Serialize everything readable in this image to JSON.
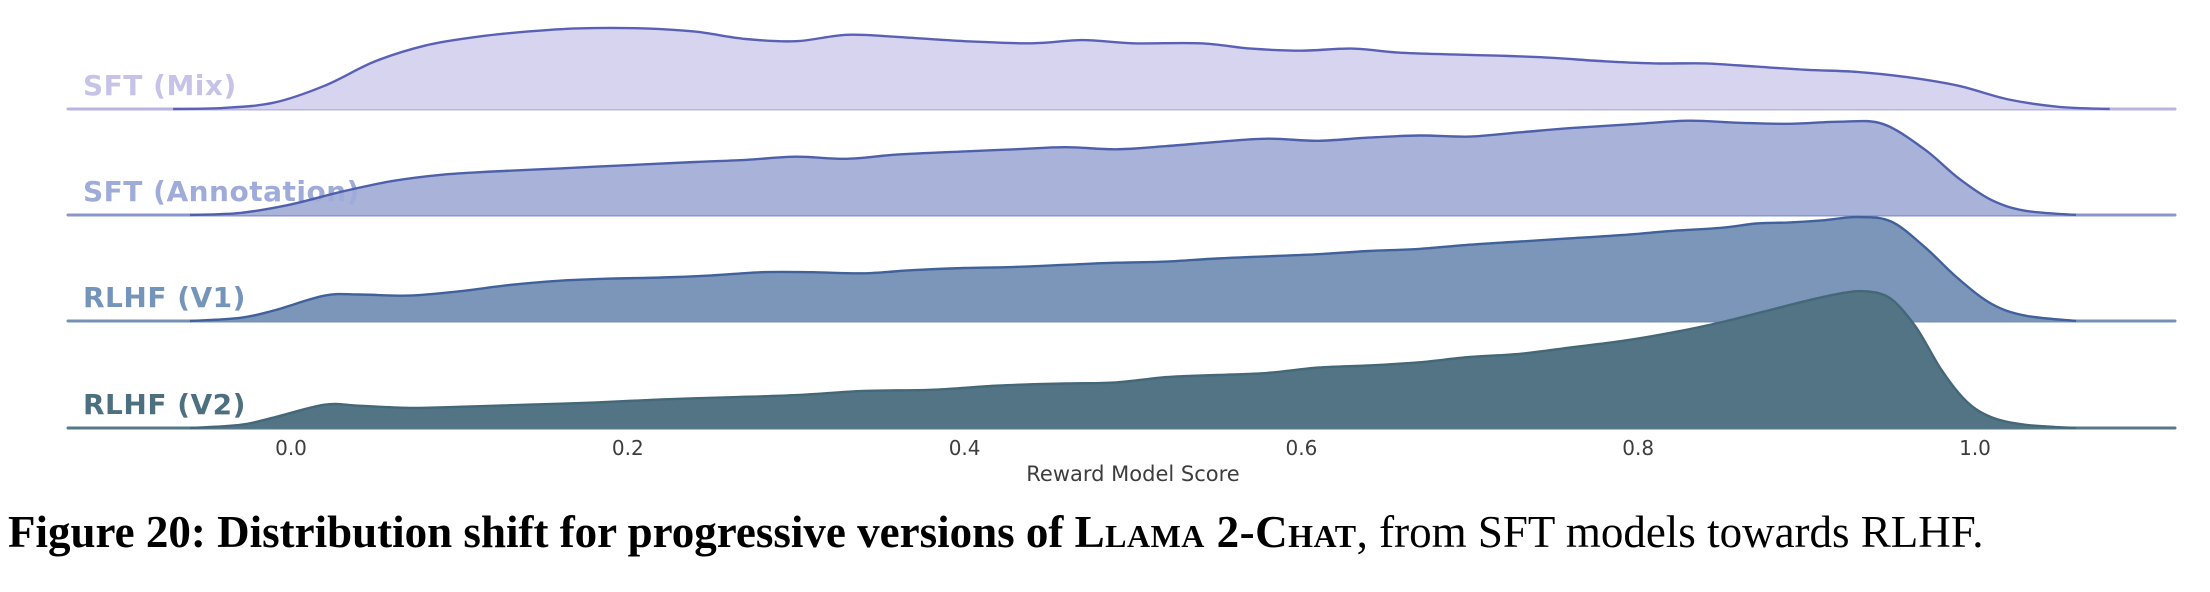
{
  "figure_caption": {
    "bold": "Figure 20: Distribution shift for progressive versions of ",
    "smallcaps": "Llama 2-Chat",
    "regular": ", from SFT models towards RLHF."
  },
  "chart_data": {
    "type": "area",
    "variant": "ridgeline",
    "title": "",
    "xlabel": "Reward Model Score",
    "ylabel": "",
    "x_ticks": [
      0.0,
      0.2,
      0.4,
      0.6,
      0.8,
      1.0
    ],
    "x_tick_labels": [
      "0.0",
      "0.2",
      "0.4",
      "0.6",
      "0.8",
      "1.0"
    ],
    "xlim": [
      -0.13,
      1.12
    ],
    "grid": false,
    "legend_position": "row-labels-left",
    "background_color": "#ffffff",
    "series": [
      {
        "name": "SFT (Mix)",
        "fill_color": "#d7d4ef",
        "stroke_color": "#5a61b5",
        "baseline_color": "#b9b4e0",
        "label_color": "#c7c3e8",
        "points": [
          [
            -0.07,
            0
          ],
          [
            -0.04,
            0.01
          ],
          [
            -0.01,
            0.06
          ],
          [
            0.02,
            0.22
          ],
          [
            0.05,
            0.45
          ],
          [
            0.08,
            0.6
          ],
          [
            0.11,
            0.68
          ],
          [
            0.14,
            0.73
          ],
          [
            0.17,
            0.76
          ],
          [
            0.21,
            0.76
          ],
          [
            0.24,
            0.73
          ],
          [
            0.27,
            0.66
          ],
          [
            0.3,
            0.64
          ],
          [
            0.33,
            0.7
          ],
          [
            0.36,
            0.68
          ],
          [
            0.4,
            0.64
          ],
          [
            0.44,
            0.62
          ],
          [
            0.47,
            0.65
          ],
          [
            0.5,
            0.62
          ],
          [
            0.54,
            0.62
          ],
          [
            0.57,
            0.57
          ],
          [
            0.6,
            0.55
          ],
          [
            0.63,
            0.57
          ],
          [
            0.66,
            0.53
          ],
          [
            0.7,
            0.51
          ],
          [
            0.74,
            0.49
          ],
          [
            0.78,
            0.45
          ],
          [
            0.81,
            0.43
          ],
          [
            0.84,
            0.43
          ],
          [
            0.87,
            0.4
          ],
          [
            0.9,
            0.37
          ],
          [
            0.93,
            0.35
          ],
          [
            0.96,
            0.3
          ],
          [
            0.99,
            0.22
          ],
          [
            1.02,
            0.09
          ],
          [
            1.05,
            0.02
          ],
          [
            1.08,
            0
          ]
        ]
      },
      {
        "name": "SFT (Annotation)",
        "fill_color": "#a9b3d9",
        "stroke_color": "#4f60ab",
        "baseline_color": "#8b97cc",
        "label_color": "#9fabd8",
        "points": [
          [
            -0.06,
            0
          ],
          [
            -0.03,
            0.02
          ],
          [
            0.0,
            0.1
          ],
          [
            0.03,
            0.22
          ],
          [
            0.06,
            0.32
          ],
          [
            0.09,
            0.38
          ],
          [
            0.12,
            0.41
          ],
          [
            0.16,
            0.44
          ],
          [
            0.2,
            0.47
          ],
          [
            0.24,
            0.5
          ],
          [
            0.27,
            0.52
          ],
          [
            0.3,
            0.55
          ],
          [
            0.33,
            0.53
          ],
          [
            0.36,
            0.57
          ],
          [
            0.4,
            0.6
          ],
          [
            0.43,
            0.62
          ],
          [
            0.46,
            0.64
          ],
          [
            0.49,
            0.62
          ],
          [
            0.52,
            0.65
          ],
          [
            0.55,
            0.69
          ],
          [
            0.58,
            0.72
          ],
          [
            0.61,
            0.7
          ],
          [
            0.64,
            0.73
          ],
          [
            0.67,
            0.75
          ],
          [
            0.7,
            0.74
          ],
          [
            0.73,
            0.78
          ],
          [
            0.76,
            0.82
          ],
          [
            0.8,
            0.86
          ],
          [
            0.83,
            0.89
          ],
          [
            0.86,
            0.87
          ],
          [
            0.89,
            0.86
          ],
          [
            0.92,
            0.88
          ],
          [
            0.945,
            0.86
          ],
          [
            0.97,
            0.62
          ],
          [
            0.99,
            0.35
          ],
          [
            1.01,
            0.14
          ],
          [
            1.03,
            0.04
          ],
          [
            1.06,
            0
          ]
        ]
      },
      {
        "name": "RLHF (V1)",
        "fill_color": "#7b96b8",
        "stroke_color": "#40619b",
        "baseline_color": "#7590b4",
        "label_color": "#7494ba",
        "points": [
          [
            -0.06,
            0
          ],
          [
            -0.03,
            0.03
          ],
          [
            -0.01,
            0.1
          ],
          [
            0.02,
            0.24
          ],
          [
            0.04,
            0.25
          ],
          [
            0.07,
            0.24
          ],
          [
            0.1,
            0.28
          ],
          [
            0.13,
            0.34
          ],
          [
            0.16,
            0.38
          ],
          [
            0.19,
            0.4
          ],
          [
            0.22,
            0.41
          ],
          [
            0.25,
            0.43
          ],
          [
            0.28,
            0.46
          ],
          [
            0.31,
            0.46
          ],
          [
            0.34,
            0.45
          ],
          [
            0.37,
            0.48
          ],
          [
            0.4,
            0.5
          ],
          [
            0.43,
            0.51
          ],
          [
            0.46,
            0.53
          ],
          [
            0.49,
            0.55
          ],
          [
            0.52,
            0.56
          ],
          [
            0.55,
            0.59
          ],
          [
            0.58,
            0.61
          ],
          [
            0.61,
            0.63
          ],
          [
            0.64,
            0.66
          ],
          [
            0.67,
            0.68
          ],
          [
            0.7,
            0.72
          ],
          [
            0.73,
            0.75
          ],
          [
            0.76,
            0.78
          ],
          [
            0.79,
            0.81
          ],
          [
            0.82,
            0.85
          ],
          [
            0.85,
            0.88
          ],
          [
            0.87,
            0.92
          ],
          [
            0.89,
            0.93
          ],
          [
            0.91,
            0.95
          ],
          [
            0.93,
            0.98
          ],
          [
            0.95,
            0.94
          ],
          [
            0.97,
            0.7
          ],
          [
            0.99,
            0.4
          ],
          [
            1.01,
            0.16
          ],
          [
            1.03,
            0.05
          ],
          [
            1.06,
            0
          ]
        ]
      },
      {
        "name": "RLHF (V2)",
        "fill_color": "#527484",
        "stroke_color": "#456879",
        "baseline_color": "#567988",
        "label_color": "#4d7080",
        "points": [
          [
            -0.06,
            0
          ],
          [
            -0.03,
            0.03
          ],
          [
            -0.01,
            0.1
          ],
          [
            0.02,
            0.22
          ],
          [
            0.04,
            0.21
          ],
          [
            0.07,
            0.19
          ],
          [
            0.1,
            0.2
          ],
          [
            0.14,
            0.22
          ],
          [
            0.18,
            0.24
          ],
          [
            0.22,
            0.27
          ],
          [
            0.26,
            0.29
          ],
          [
            0.3,
            0.31
          ],
          [
            0.34,
            0.35
          ],
          [
            0.38,
            0.36
          ],
          [
            0.42,
            0.4
          ],
          [
            0.46,
            0.42
          ],
          [
            0.49,
            0.43
          ],
          [
            0.52,
            0.48
          ],
          [
            0.55,
            0.5
          ],
          [
            0.58,
            0.52
          ],
          [
            0.61,
            0.57
          ],
          [
            0.64,
            0.59
          ],
          [
            0.67,
            0.62
          ],
          [
            0.7,
            0.67
          ],
          [
            0.73,
            0.7
          ],
          [
            0.76,
            0.76
          ],
          [
            0.79,
            0.82
          ],
          [
            0.82,
            0.9
          ],
          [
            0.85,
            1.0
          ],
          [
            0.88,
            1.12
          ],
          [
            0.9,
            1.2
          ],
          [
            0.92,
            1.27
          ],
          [
            0.935,
            1.29
          ],
          [
            0.95,
            1.22
          ],
          [
            0.965,
            0.95
          ],
          [
            0.98,
            0.55
          ],
          [
            0.995,
            0.25
          ],
          [
            1.01,
            0.1
          ],
          [
            1.03,
            0.03
          ],
          [
            1.06,
            0
          ]
        ]
      }
    ]
  }
}
